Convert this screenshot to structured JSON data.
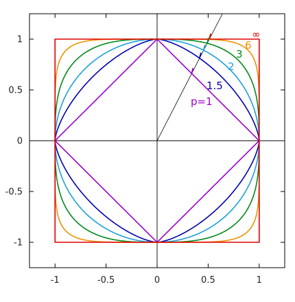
{
  "chart_data": {
    "type": "line",
    "title": "",
    "xlabel": "",
    "ylabel": "",
    "xlim": [
      -1.25,
      1.25
    ],
    "ylim": [
      -1.25,
      1.25
    ],
    "xticks": [
      -1,
      -0.5,
      0,
      0.5,
      1
    ],
    "yticks": [
      -1,
      -0.5,
      0,
      0.5,
      1
    ],
    "xtick_labels": [
      "-1",
      "-0.5",
      "0",
      "0.5",
      "1"
    ],
    "ytick_labels": [
      "-1",
      "-0.5",
      "0",
      "0.5",
      "1"
    ],
    "grid": false,
    "description_curves": "unit circles |x|^p + |y|^p = 1",
    "series": [
      {
        "name": "p=1",
        "p": 1,
        "color": "#9b00d0"
      },
      {
        "name": "1.5",
        "p": 1.5,
        "color": "#0000b0"
      },
      {
        "name": "2",
        "p": 2,
        "color": "#1aa0d8"
      },
      {
        "name": "3",
        "p": 3,
        "color": "#00881a"
      },
      {
        "name": "6",
        "p": 6,
        "color": "#f09000"
      },
      {
        "name": "∞",
        "p": "inf",
        "color": "#e00000"
      }
    ],
    "ray": {
      "from": [
        0,
        0
      ],
      "through": [
        0.64,
        1.25
      ],
      "color": "#000000"
    }
  }
}
